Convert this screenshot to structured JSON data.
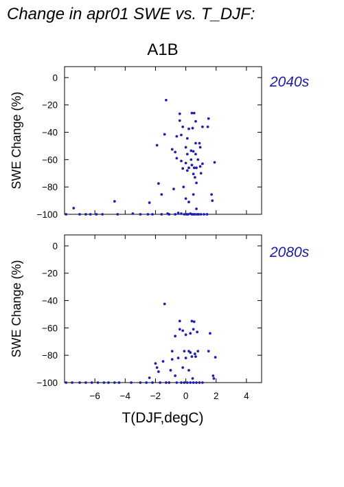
{
  "figure_title": "Change in apr01 SWE vs. T_DJF:",
  "scenario_label": "A1B",
  "x_axis_label": "T(DJF,degC)",
  "colors": {
    "points": "#1f1fb0",
    "period_label": "#1a1aa8"
  },
  "chart_data": [
    {
      "type": "scatter",
      "period_label": "2040s",
      "ylabel": "SWE Change (%)",
      "xlabel": "",
      "xlim": [
        -8,
        5
      ],
      "ylim": [
        -100,
        8
      ],
      "xticks": [
        -6,
        -4,
        -2,
        0,
        2,
        4
      ],
      "yticks": [
        0,
        -20,
        -40,
        -60,
        -80,
        -100
      ],
      "grid": false,
      "points": [
        [
          -7.9,
          -100
        ],
        [
          -7.4,
          -95.5
        ],
        [
          -7.0,
          -100
        ],
        [
          -6.6,
          -100
        ],
        [
          -6.3,
          -100
        ],
        [
          -5.9,
          -100
        ],
        [
          -5.5,
          -100
        ],
        [
          -4.7,
          -90.5
        ],
        [
          -4.5,
          -100
        ],
        [
          -3.5,
          -99.5
        ],
        [
          -3.0,
          -100
        ],
        [
          -2.5,
          -100
        ],
        [
          -2.4,
          -91.5
        ],
        [
          -2.2,
          -100
        ],
        [
          -1.9,
          -49.5
        ],
        [
          -1.8,
          -77.5
        ],
        [
          -1.6,
          -85.5
        ],
        [
          -1.6,
          -100
        ],
        [
          -1.4,
          -41.5
        ],
        [
          -1.3,
          -16.5
        ],
        [
          -1.2,
          -99.5
        ],
        [
          -1.1,
          -100
        ],
        [
          -0.9,
          -52.5
        ],
        [
          -0.8,
          -81.5
        ],
        [
          -0.7,
          -54.5
        ],
        [
          -0.7,
          -100
        ],
        [
          -0.6,
          -43
        ],
        [
          -0.6,
          -59
        ],
        [
          -0.5,
          -99
        ],
        [
          -0.4,
          -26.5
        ],
        [
          -0.4,
          -31.5
        ],
        [
          -0.3,
          -42
        ],
        [
          -0.3,
          -61
        ],
        [
          -0.3,
          -99.5
        ],
        [
          -0.2,
          -36
        ],
        [
          -0.2,
          -66.5
        ],
        [
          -0.15,
          -80
        ],
        [
          -0.1,
          -100
        ],
        [
          0.0,
          -51
        ],
        [
          0.0,
          -62.5
        ],
        [
          0.0,
          -88.5
        ],
        [
          0.05,
          -100
        ],
        [
          0.1,
          -44.5
        ],
        [
          0.1,
          -56
        ],
        [
          0.1,
          -68
        ],
        [
          0.15,
          -100
        ],
        [
          0.2,
          -37.5
        ],
        [
          0.2,
          -66
        ],
        [
          0.2,
          -91
        ],
        [
          0.3,
          -99.5
        ],
        [
          0.35,
          -53.5
        ],
        [
          0.35,
          -60
        ],
        [
          0.4,
          -26
        ],
        [
          0.4,
          -64
        ],
        [
          0.4,
          -100
        ],
        [
          0.45,
          -37
        ],
        [
          0.5,
          -54
        ],
        [
          0.5,
          -70.5
        ],
        [
          0.5,
          -85.5
        ],
        [
          0.5,
          -100
        ],
        [
          0.55,
          -26
        ],
        [
          0.55,
          -66
        ],
        [
          0.6,
          -73
        ],
        [
          0.6,
          -100
        ],
        [
          0.65,
          -32
        ],
        [
          0.65,
          -48
        ],
        [
          0.65,
          -56
        ],
        [
          0.7,
          -66
        ],
        [
          0.7,
          -77
        ],
        [
          0.7,
          -96
        ],
        [
          0.75,
          -100
        ],
        [
          0.8,
          -60
        ],
        [
          0.85,
          -100
        ],
        [
          0.9,
          -48
        ],
        [
          0.95,
          -51
        ],
        [
          0.95,
          -65
        ],
        [
          1.0,
          -70
        ],
        [
          1.0,
          -100
        ],
        [
          1.1,
          -36
        ],
        [
          1.1,
          -63
        ],
        [
          1.2,
          -100
        ],
        [
          1.4,
          -100
        ],
        [
          1.45,
          -36
        ],
        [
          1.5,
          -30
        ],
        [
          1.7,
          -85.5
        ],
        [
          1.75,
          -90
        ],
        [
          1.9,
          -62
        ]
      ]
    },
    {
      "type": "scatter",
      "period_label": "2080s",
      "ylabel": "SWE Change (%)",
      "xlabel": "T(DJF,degC)",
      "xlim": [
        -8,
        5
      ],
      "ylim": [
        -100,
        8
      ],
      "xticks": [
        -6,
        -4,
        -2,
        0,
        2,
        4
      ],
      "yticks": [
        0,
        -20,
        -40,
        -60,
        -80,
        -100
      ],
      "grid": false,
      "points": [
        [
          -7.9,
          -100
        ],
        [
          -7.5,
          -100
        ],
        [
          -7.0,
          -100
        ],
        [
          -6.6,
          -100
        ],
        [
          -6.2,
          -100
        ],
        [
          -5.8,
          -100
        ],
        [
          -5.4,
          -100
        ],
        [
          -5.1,
          -100
        ],
        [
          -4.7,
          -100
        ],
        [
          -4.4,
          -100
        ],
        [
          -3.6,
          -100
        ],
        [
          -3.0,
          -100
        ],
        [
          -2.6,
          -100
        ],
        [
          -2.4,
          -96.5
        ],
        [
          -2.2,
          -100
        ],
        [
          -2.0,
          -86
        ],
        [
          -1.9,
          -89
        ],
        [
          -1.8,
          -92
        ],
        [
          -1.7,
          -100
        ],
        [
          -1.5,
          -84.5
        ],
        [
          -1.4,
          -42.5
        ],
        [
          -1.3,
          -100
        ],
        [
          -1.1,
          -100
        ],
        [
          -1.0,
          -91
        ],
        [
          -0.9,
          -77
        ],
        [
          -0.9,
          -83
        ],
        [
          -0.7,
          -66
        ],
        [
          -0.7,
          -95
        ],
        [
          -0.6,
          -100
        ],
        [
          -0.5,
          -82
        ],
        [
          -0.4,
          -55
        ],
        [
          -0.4,
          -61
        ],
        [
          -0.3,
          -100
        ],
        [
          -0.2,
          -62
        ],
        [
          -0.2,
          -89
        ],
        [
          -0.1,
          -77
        ],
        [
          -0.1,
          -100
        ],
        [
          0.0,
          -65
        ],
        [
          0.0,
          -82
        ],
        [
          0.1,
          -100
        ],
        [
          0.2,
          -77
        ],
        [
          0.2,
          -91
        ],
        [
          0.3,
          -64
        ],
        [
          0.3,
          -78
        ],
        [
          0.3,
          -100
        ],
        [
          0.4,
          -55
        ],
        [
          0.4,
          -81
        ],
        [
          0.45,
          -97
        ],
        [
          0.5,
          -61
        ],
        [
          0.5,
          -100
        ],
        [
          0.55,
          -55.5
        ],
        [
          0.6,
          -79
        ],
        [
          0.65,
          -81
        ],
        [
          0.7,
          -100
        ],
        [
          0.75,
          -63
        ],
        [
          0.8,
          -77
        ],
        [
          0.9,
          -100
        ],
        [
          1.1,
          -100
        ],
        [
          1.5,
          -77
        ],
        [
          1.6,
          -64
        ],
        [
          1.8,
          -95
        ],
        [
          1.85,
          -97
        ],
        [
          1.95,
          -81.5
        ]
      ]
    }
  ]
}
